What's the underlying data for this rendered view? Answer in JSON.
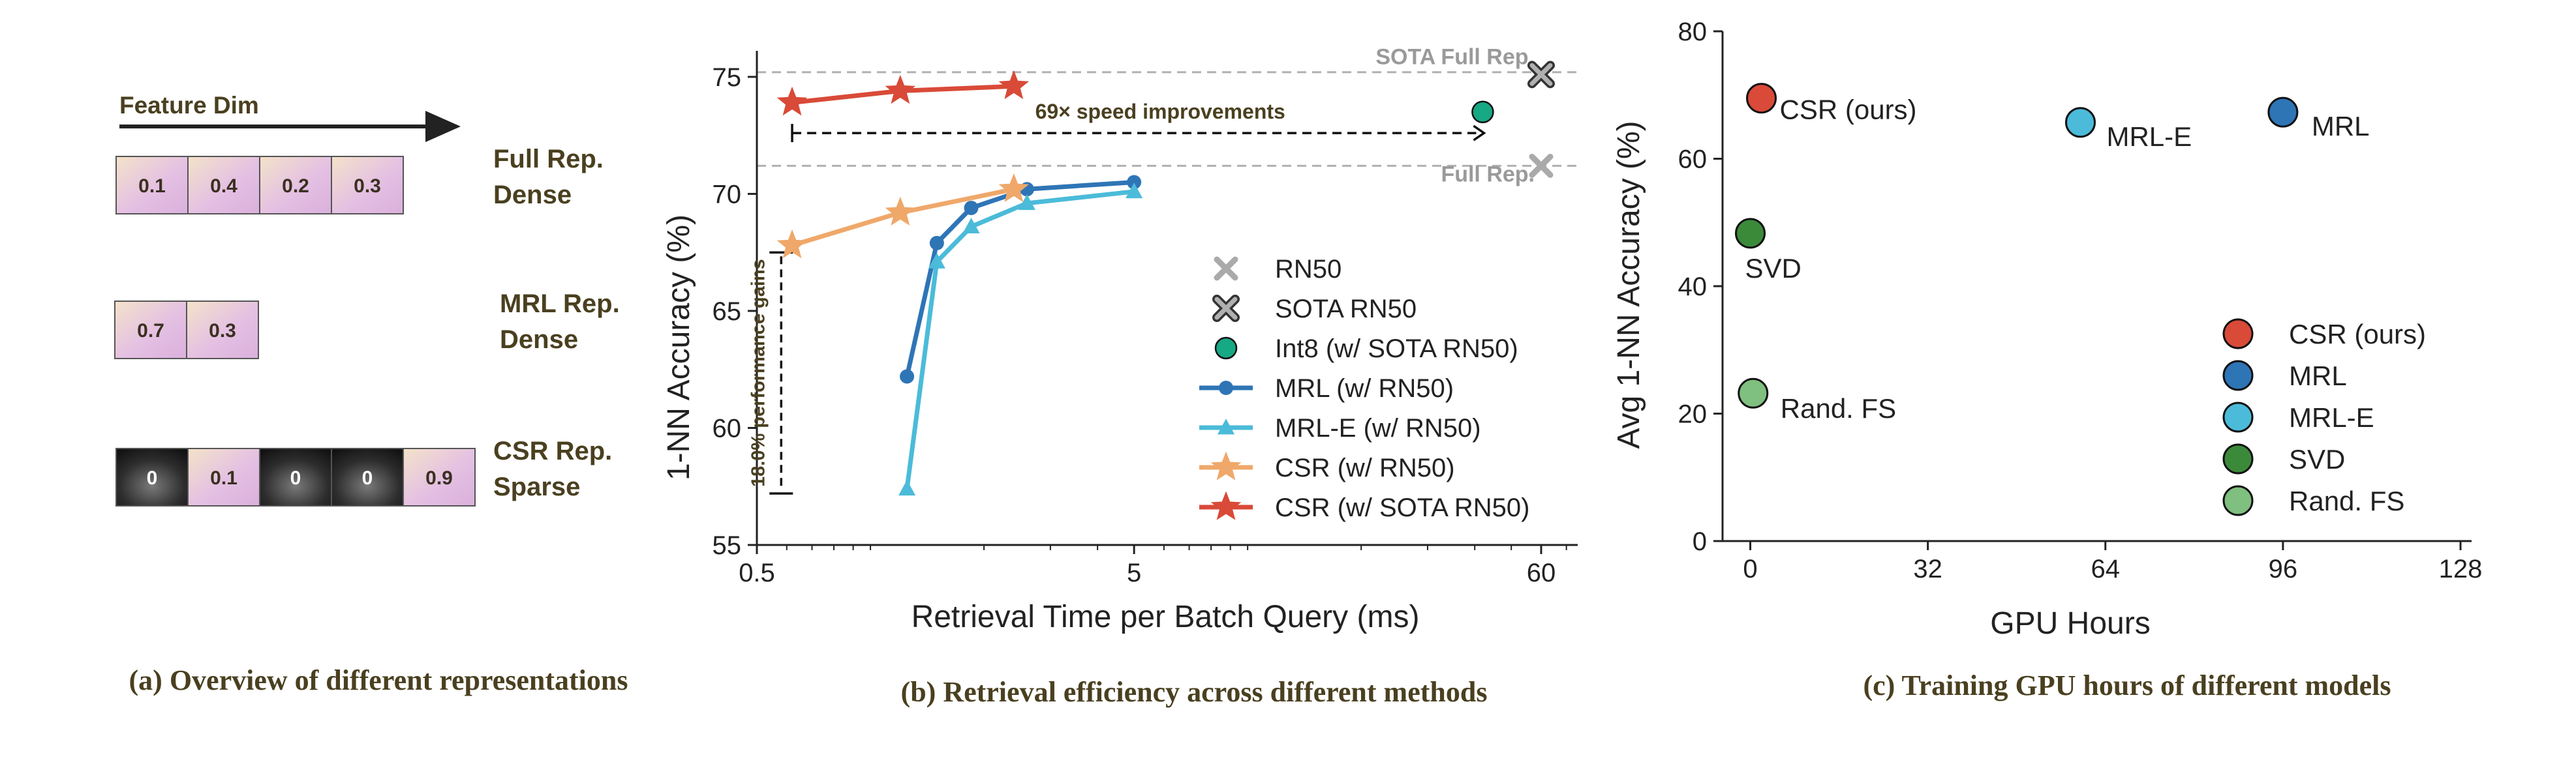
{
  "colors": {
    "csr": "#d94a38",
    "mrl": "#2e75b6",
    "mrle": "#4bbbd9",
    "svd": "#3b8a3a",
    "randfs": "#7fbf7f",
    "csr_rn50": "#efa86a",
    "int8": "#17a884",
    "gray": "#aaaaaa",
    "dark_text": "#4a4020"
  },
  "panel_a": {
    "caption": "(a) Overview of different representations",
    "feature_dim_label": "Feature Dim",
    "rows": [
      {
        "label1": "Full Rep.",
        "label2": "Dense",
        "cells": [
          {
            "value": "0.1",
            "kind": "dense"
          },
          {
            "value": "0.4",
            "kind": "dense"
          },
          {
            "value": "0.2",
            "kind": "dense"
          },
          {
            "value": "0.3",
            "kind": "dense"
          }
        ]
      },
      {
        "label1": "MRL Rep.",
        "label2": "Dense",
        "cells": [
          {
            "value": "0.7",
            "kind": "dense"
          },
          {
            "value": "0.3",
            "kind": "dense"
          }
        ]
      },
      {
        "label1": "CSR Rep.",
        "label2": "Sparse",
        "cells": [
          {
            "value": "0",
            "kind": "zero"
          },
          {
            "value": "0.1",
            "kind": "dense"
          },
          {
            "value": "0",
            "kind": "zero"
          },
          {
            "value": "0",
            "kind": "zero"
          },
          {
            "value": "0.9",
            "kind": "dense"
          }
        ]
      }
    ]
  },
  "chart_data": [
    {
      "type": "line",
      "title": "(b) Retrieval efficiency across different methods",
      "xlabel": "Retrieval Time per Batch Query (ms)",
      "ylabel": "1-NN Accuracy (%)",
      "xscale": "log",
      "xlim": [
        0.5,
        75
      ],
      "ylim": [
        55,
        76
      ],
      "xticks": [
        0.5,
        5,
        60
      ],
      "xtick_labels": [
        "0.5",
        "5",
        "60"
      ],
      "yticks": [
        55,
        60,
        65,
        70,
        75
      ],
      "ytick_labels": [
        "55",
        "60",
        "65",
        "70",
        "75"
      ],
      "reference_lines": [
        {
          "label": "SOTA Full Rep.",
          "y": 75.2
        },
        {
          "label": "Full Rep.",
          "y": 71.2
        }
      ],
      "series": [
        {
          "name": "MRL (w/ RN50)",
          "marker": "circle",
          "color_key": "mrl",
          "points": [
            [
              1.25,
              62.2
            ],
            [
              1.5,
              67.9
            ],
            [
              1.85,
              69.4
            ],
            [
              2.6,
              70.2
            ],
            [
              5.0,
              70.5
            ]
          ]
        },
        {
          "name": "MRL-E (w/ RN50)",
          "marker": "triangle",
          "color_key": "mrle",
          "points": [
            [
              1.25,
              57.4
            ],
            [
              1.5,
              67.1
            ],
            [
              1.85,
              68.6
            ],
            [
              2.6,
              69.6
            ],
            [
              5.0,
              70.1
            ]
          ]
        },
        {
          "name": "CSR (w/ RN50)",
          "marker": "star",
          "color_key": "csr_rn50",
          "points": [
            [
              0.62,
              67.8
            ],
            [
              1.2,
              69.2
            ],
            [
              2.4,
              70.2
            ]
          ]
        },
        {
          "name": "CSR (w/ SOTA RN50)",
          "marker": "star",
          "color_key": "csr",
          "points": [
            [
              0.62,
              73.9
            ],
            [
              1.2,
              74.4
            ],
            [
              2.4,
              74.6
            ]
          ]
        },
        {
          "name": "Int8 (w/ SOTA RN50)",
          "marker": "circle_outline",
          "color_key": "int8",
          "points": [
            [
              42,
              73.5
            ]
          ]
        },
        {
          "name": "RN50",
          "marker": "x",
          "color_key": "gray",
          "points": [
            [
              60,
              71.2
            ]
          ]
        },
        {
          "name": "SOTA RN50",
          "marker": "x_box",
          "color_key": "gray",
          "points": [
            [
              60,
              75.1
            ]
          ]
        }
      ],
      "legend_order": [
        "RN50",
        "SOTA RN50",
        "Int8 (w/ SOTA RN50)",
        "MRL (w/ RN50)",
        "MRL-E (w/ RN50)",
        "CSR (w/ RN50)",
        "CSR (w/ SOTA RN50)"
      ],
      "legend_position": "bottom-right",
      "annotations": {
        "speed": {
          "text": "69× speed improvements",
          "x_from": 0.62,
          "x_to": 42,
          "y": 72.6
        },
        "gain": {
          "text": "18.0%  performance gains",
          "x": 0.58,
          "y_from": 57.2,
          "y_to": 67.5
        }
      }
    },
    {
      "type": "scatter",
      "title": "(c) Training GPU hours of different models",
      "xlabel": "GPU Hours",
      "ylabel": "Avg 1-NN Accuracy (%)",
      "xlim": [
        -5,
        130
      ],
      "ylim": [
        0,
        80
      ],
      "xticks": [
        0,
        32,
        64,
        96,
        128
      ],
      "xtick_labels": [
        "0",
        "32",
        "64",
        "96",
        "128"
      ],
      "yticks": [
        0,
        20,
        40,
        60,
        80
      ],
      "ytick_labels": [
        "0",
        "20",
        "40",
        "60",
        "80"
      ],
      "points": [
        {
          "name": "CSR (ours)",
          "label": "CSR (ours)",
          "x": 2,
          "y": 69.5,
          "color_key": "csr"
        },
        {
          "name": "MRL",
          "label": "MRL",
          "x": 96,
          "y": 67.3,
          "color_key": "mrl"
        },
        {
          "name": "MRL-E",
          "label": "MRL-E",
          "x": 59.5,
          "y": 65.7,
          "color_key": "mrle"
        },
        {
          "name": "SVD",
          "label": "SVD",
          "x": 0,
          "y": 48.3,
          "color_key": "svd"
        },
        {
          "name": "Rand. FS",
          "label": "Rand. FS",
          "x": 0.5,
          "y": 23.2,
          "color_key": "randfs"
        }
      ],
      "legend": [
        "CSR (ours)",
        "MRL",
        "MRL-E",
        "SVD",
        "Rand. FS"
      ],
      "legend_position": "bottom-right"
    }
  ]
}
